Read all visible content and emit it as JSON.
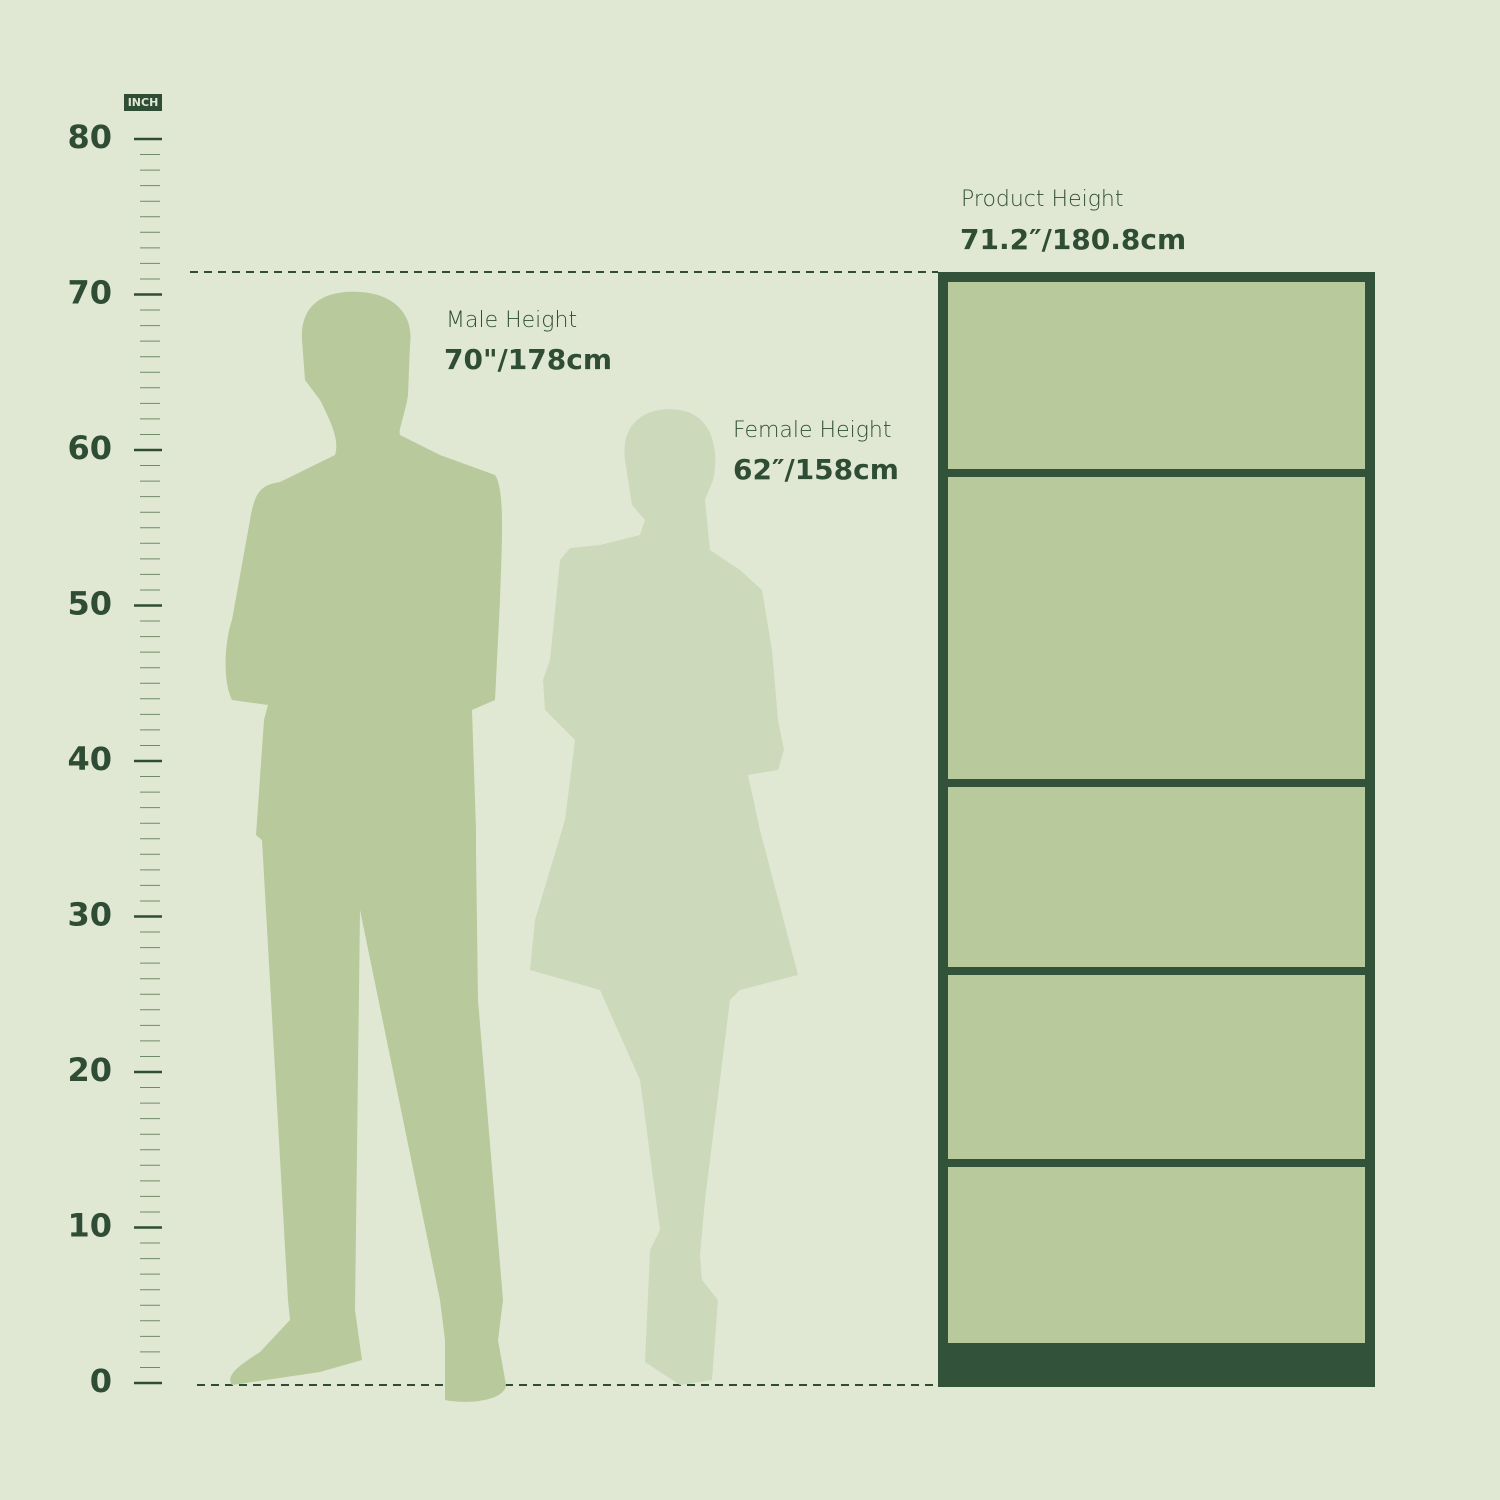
{
  "scale": {
    "unit": "INCH",
    "ticks": [
      0,
      10,
      20,
      30,
      40,
      50,
      60,
      70,
      80
    ]
  },
  "labels": [
    {
      "title": "Male Height",
      "value": "70\"/178cm"
    },
    {
      "title": "Female Height",
      "value": "62″/158cm"
    },
    {
      "title": "Product Height",
      "value": "71.2″/180.8cm"
    }
  ]
}
